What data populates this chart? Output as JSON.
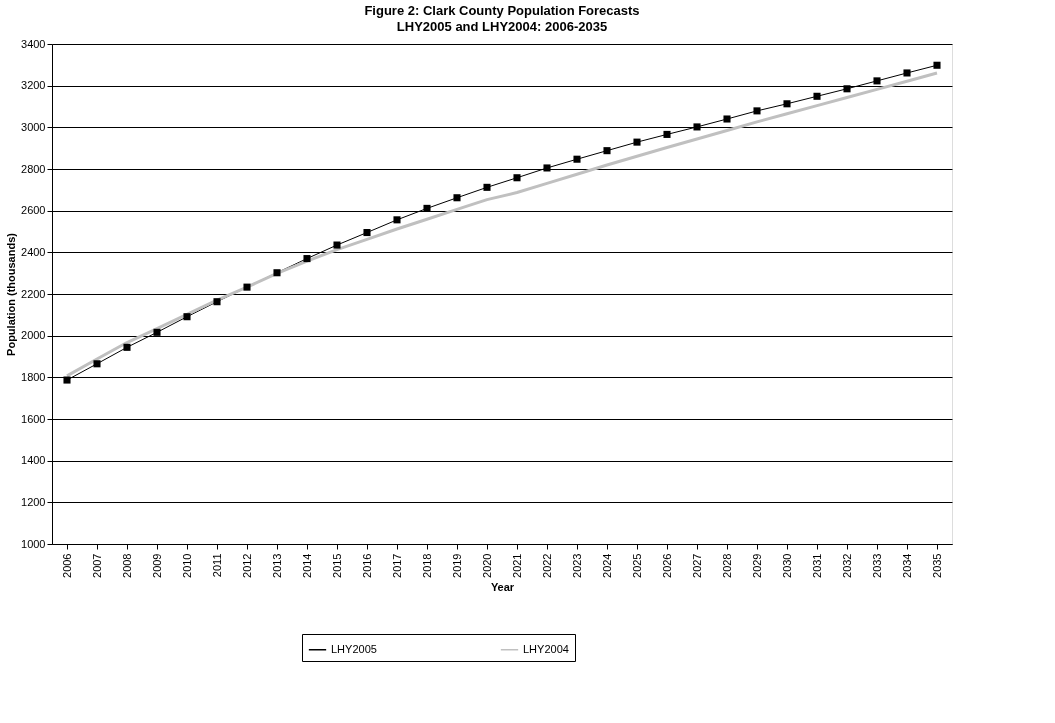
{
  "chart_data": {
    "type": "line",
    "title": "Figure 2: Clark County Population Forecasts",
    "subtitle": "LHY2005 and LHY2004: 2006-2035",
    "xlabel": "Year",
    "ylabel": "Population (thousands)",
    "categories": [
      "2006",
      "2007",
      "2008",
      "2009",
      "2010",
      "2011",
      "2012",
      "2013",
      "2014",
      "2015",
      "2016",
      "2017",
      "2018",
      "2019",
      "2020",
      "2021",
      "2022",
      "2023",
      "2024",
      "2025",
      "2026",
      "2027",
      "2028",
      "2029",
      "2030",
      "2031",
      "2032",
      "2033",
      "2034",
      "2035"
    ],
    "series": [
      {
        "name": "LHY2005",
        "color": "#000000",
        "marker": "square",
        "values": [
          1787,
          1865,
          1944,
          2016,
          2091,
          2163,
          2233,
          2302,
          2370,
          2435,
          2495,
          2556,
          2611,
          2662,
          2712,
          2758,
          2805,
          2847,
          2888,
          2929,
          2966,
          3002,
          3040,
          3079,
          3113,
          3149,
          3185,
          3223,
          3261,
          3298
        ]
      },
      {
        "name": "LHY2004",
        "color": "#c0c0c0",
        "marker": "none",
        "values": [
          1807,
          1888,
          1967,
          2034,
          2102,
          2171,
          2233,
          2299,
          2358,
          2413,
          2462,
          2512,
          2559,
          2606,
          2653,
          2687,
          2731,
          2775,
          2819,
          2861,
          2903,
          2944,
          2985,
          3026,
          3065,
          3104,
          3143,
          3182,
          3221,
          3261
        ]
      }
    ],
    "ylim": [
      1000,
      3400
    ],
    "yticks": [
      1000,
      1200,
      1400,
      1600,
      1800,
      2000,
      2200,
      2400,
      2600,
      2800,
      3000,
      3200,
      3400
    ],
    "grid": "y",
    "legend": "bottom",
    "line_style": "solid"
  }
}
